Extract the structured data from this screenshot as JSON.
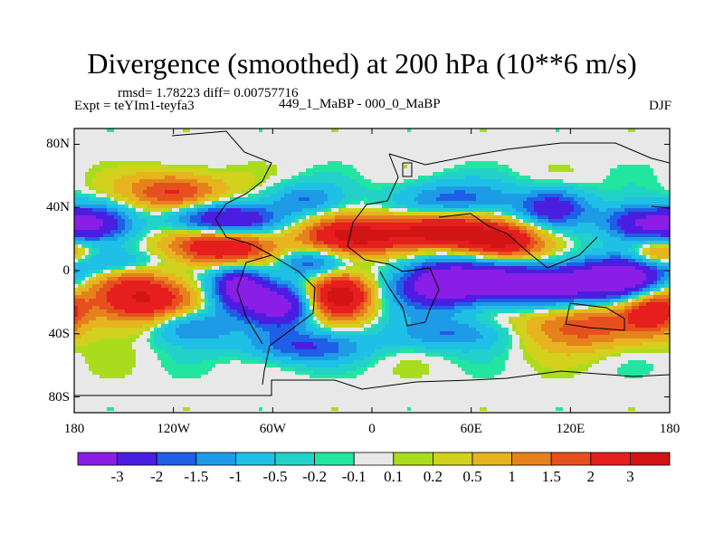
{
  "title": "Divergence (smoothed) at 200 hPa (10**6 m/s)",
  "stats_line": "rmsd= 1.78223 diff= 0.00757716",
  "expt_line": "Expt = teYIm1-teyfa3",
  "runs_line": "449_1_MaBP - 000_0_MaBP",
  "season": "DJF",
  "chart_data": {
    "type": "heatmap",
    "title": "Divergence (smoothed) at 200 hPa (10**6 m/s)",
    "xlabel": "",
    "ylabel": "",
    "xlim": [
      -180,
      180
    ],
    "ylim": [
      -90,
      90
    ],
    "x_ticks": [
      {
        "value": -180,
        "label": "180"
      },
      {
        "value": -120,
        "label": "120W"
      },
      {
        "value": -60,
        "label": "60W"
      },
      {
        "value": 0,
        "label": "0"
      },
      {
        "value": 60,
        "label": "60E"
      },
      {
        "value": 120,
        "label": "120E"
      },
      {
        "value": 180,
        "label": "180"
      }
    ],
    "y_ticks": [
      {
        "value": 80,
        "label": "80N"
      },
      {
        "value": 40,
        "label": "40N"
      },
      {
        "value": 0,
        "label": "0"
      },
      {
        "value": -40,
        "label": "40S"
      },
      {
        "value": -80,
        "label": "80S"
      }
    ],
    "colorbar": {
      "levels": [
        "-3",
        "-2",
        "-1.5",
        "-1",
        "-0.5",
        "-0.2",
        "-0.1",
        "0.1",
        "0.2",
        "0.5",
        "1",
        "1.5",
        "2",
        "3"
      ],
      "colors": [
        "#8a1ee6",
        "#4a1ee0",
        "#1f5ee6",
        "#1e9be6",
        "#1ec0e6",
        "#22d2c8",
        "#22e6a0",
        "#e8e8e8",
        "#aadc1e",
        "#d2d21e",
        "#e6b41e",
        "#e6821e",
        "#e6501e",
        "#e61e1e",
        "#d21414"
      ]
    },
    "features": [
      {
        "lon": -90,
        "lat": 15,
        "amp": 3.2,
        "sx": 22,
        "sy": 9
      },
      {
        "lon": -80,
        "lat": -10,
        "amp": -4.0,
        "sx": 12,
        "sy": 10
      },
      {
        "lon": -55,
        "lat": -22,
        "amp": -3.5,
        "sx": 14,
        "sy": 10
      },
      {
        "lon": -40,
        "lat": 5,
        "amp": -1.8,
        "sx": 14,
        "sy": 6
      },
      {
        "lon": 40,
        "lat": -8,
        "amp": -4.0,
        "sx": 20,
        "sy": 11
      },
      {
        "lon": 100,
        "lat": -8,
        "amp": -4.2,
        "sx": 30,
        "sy": 9
      },
      {
        "lon": 150,
        "lat": -5,
        "amp": -3.5,
        "sx": 20,
        "sy": 9
      },
      {
        "lon": -10,
        "lat": 22,
        "amp": 3.2,
        "sx": 22,
        "sy": 8
      },
      {
        "lon": 40,
        "lat": 25,
        "amp": 3.5,
        "sx": 22,
        "sy": 8
      },
      {
        "lon": 80,
        "lat": 18,
        "amp": 3.0,
        "sx": 18,
        "sy": 8
      },
      {
        "lon": -20,
        "lat": -15,
        "amp": 3.8,
        "sx": 14,
        "sy": 10
      },
      {
        "lon": -140,
        "lat": -18,
        "amp": 3.2,
        "sx": 22,
        "sy": 12
      },
      {
        "lon": 125,
        "lat": -35,
        "amp": 2.0,
        "sx": 25,
        "sy": 10
      },
      {
        "lon": -90,
        "lat": 32,
        "amp": -3.5,
        "sx": 22,
        "sy": 7
      },
      {
        "lon": -170,
        "lat": 30,
        "amp": -3.0,
        "sx": 15,
        "sy": 8
      },
      {
        "lon": 160,
        "lat": 30,
        "amp": -3.0,
        "sx": 15,
        "sy": 8
      },
      {
        "lon": 110,
        "lat": 40,
        "amp": -2.5,
        "sx": 15,
        "sy": 8
      },
      {
        "lon": 50,
        "lat": 45,
        "amp": -1.8,
        "sx": 25,
        "sy": 8
      },
      {
        "lon": -120,
        "lat": 50,
        "amp": 2.2,
        "sx": 20,
        "sy": 8
      },
      {
        "lon": -40,
        "lat": 45,
        "amp": -1.5,
        "sx": 15,
        "sy": 7
      },
      {
        "lon": -40,
        "lat": -48,
        "amp": -2.0,
        "sx": 25,
        "sy": 7
      },
      {
        "lon": -110,
        "lat": -35,
        "amp": -2.0,
        "sx": 18,
        "sy": 8
      },
      {
        "lon": 50,
        "lat": -40,
        "amp": -1.5,
        "sx": 25,
        "sy": 7
      },
      {
        "lon": 170,
        "lat": -25,
        "amp": 2.4,
        "sx": 12,
        "sy": 10
      },
      {
        "lon": -160,
        "lat": 5,
        "amp": -1.8,
        "sx": 20,
        "sy": 6
      },
      {
        "lon": 175,
        "lat": 10,
        "amp": 2.0,
        "sx": 12,
        "sy": 6
      }
    ]
  }
}
